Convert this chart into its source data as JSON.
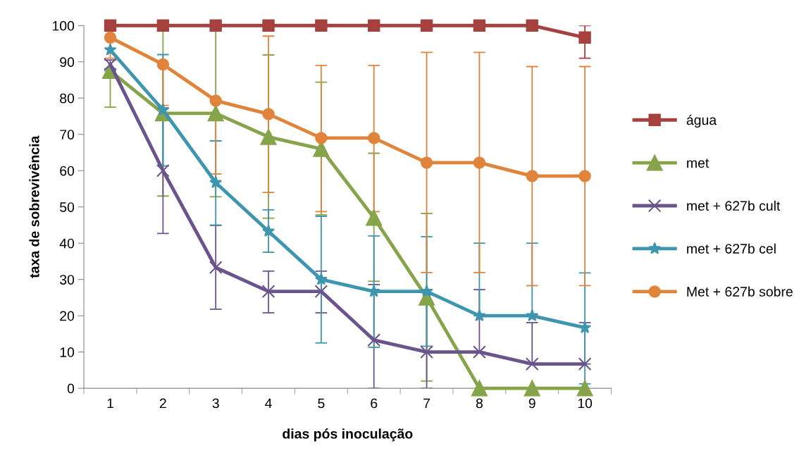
{
  "chart_data": {
    "type": "line",
    "xlabel": "dias pós inoculação",
    "ylabel": "taxa de sobrevivência",
    "categories": [
      "1",
      "2",
      "3",
      "4",
      "5",
      "6",
      "7",
      "8",
      "9",
      "10"
    ],
    "ylim": [
      0,
      100
    ],
    "yticks": [
      0,
      10,
      20,
      30,
      40,
      50,
      60,
      70,
      80,
      90,
      100
    ],
    "grid": false,
    "legend": "right",
    "series": [
      {
        "name": "água",
        "color": "#a5413f",
        "marker": "square",
        "values": [
          100,
          100,
          100,
          100,
          100,
          100,
          100,
          100,
          100,
          96.7
        ],
        "errors": [
          null,
          null,
          null,
          null,
          null,
          null,
          null,
          null,
          null,
          [
            91,
            100
          ]
        ]
      },
      {
        "name": "met",
        "color": "#86a44a",
        "marker": "triangle",
        "values": [
          87.5,
          75.8,
          75.8,
          69.3,
          66,
          47,
          25,
          0,
          0,
          0
        ],
        "errors": [
          [
            77.5,
            87.5
          ],
          [
            53,
            98.6
          ],
          [
            52.8,
            98.8
          ],
          [
            46.9,
            91.9
          ],
          [
            47.8,
            84.4
          ],
          [
            29.5,
            64.8
          ],
          [
            2,
            48.2
          ],
          null,
          null,
          null
        ]
      },
      {
        "name": "met + 627b cult",
        "color": "#6b548e",
        "marker": "cross",
        "values": [
          89.3,
          60,
          33.3,
          26.7,
          26.7,
          13.3,
          10,
          10,
          6.7,
          6.7
        ],
        "errors": [
          1.2,
          [
            42.7,
            77.3
          ],
          [
            21.8,
            44.9
          ],
          [
            20.8,
            32.3
          ],
          [
            20.8,
            32.3
          ],
          [
            0,
            28.6
          ],
          [
            0,
            27.2
          ],
          [
            10,
            27.2
          ],
          [
            6.7,
            18.1
          ],
          [
            6.7,
            18.1
          ]
        ]
      },
      {
        "name": "met + 627b cel",
        "color": "#3d96ae",
        "marker": "star",
        "values": [
          93.3,
          76.7,
          56.7,
          43.3,
          30,
          26.7,
          26.7,
          20,
          20,
          16.7
        ],
        "errors": [
          null,
          [
            61.3,
            92
          ],
          [
            45,
            68.2
          ],
          [
            37.5,
            49.2
          ],
          [
            12.5,
            47.4
          ],
          [
            11.3,
            42
          ],
          [
            11.6,
            41.8
          ],
          [
            20,
            40
          ],
          [
            20,
            40
          ],
          [
            1.2,
            31.8
          ]
        ]
      },
      {
        "name": "Met + 627b sobre",
        "color": "#e0843b",
        "marker": "circle",
        "values": [
          96.7,
          89.3,
          79.3,
          75.6,
          69,
          69,
          62.2,
          62.2,
          58.5,
          58.5
        ],
        "errors": [
          [
            91,
            96.7
          ],
          [
            78,
            89.3
          ],
          [
            59.1,
            79.3
          ],
          [
            54,
            97.1
          ],
          [
            48.7,
            89
          ],
          [
            48.7,
            89
          ],
          [
            31.9,
            92.6
          ],
          [
            31.9,
            92.6
          ],
          [
            28.3,
            88.7
          ],
          [
            28.3,
            88.7
          ]
        ]
      }
    ]
  }
}
